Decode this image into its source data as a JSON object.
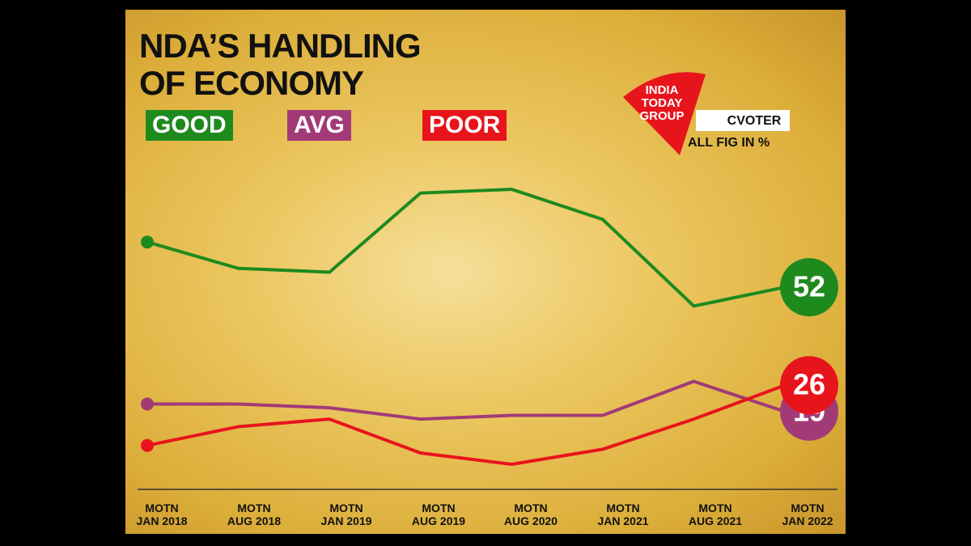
{
  "chart_data": {
    "type": "line",
    "title": "NDA’S HANDLING\nOF ECONOMY",
    "note": "ALL FIG IN %",
    "logo": "INDIA\nTODAY\nGROUP",
    "partner": "CVOTER",
    "categories": [
      "MOTN\nJAN 2018",
      "MOTN\nAUG 2018",
      "MOTN\nJAN 2019",
      "MOTN\nAUG 2019",
      "MOTN\nAUG 2020",
      "MOTN\nJAN 2021",
      "MOTN\nAUG 2021",
      "MOTN\nJAN 2022"
    ],
    "series": [
      {
        "name": "GOOD",
        "color": "#1e8a1e",
        "values": [
          64,
          57,
          56,
          77,
          78,
          70,
          47,
          52
        ]
      },
      {
        "name": "AVG",
        "color": "#a23a78",
        "values": [
          21,
          21,
          20,
          17,
          18,
          18,
          27,
          19
        ]
      },
      {
        "name": "POOR",
        "color": "#e8141c",
        "values": [
          10,
          15,
          17,
          8,
          5,
          9,
          17,
          26
        ]
      }
    ]
  }
}
